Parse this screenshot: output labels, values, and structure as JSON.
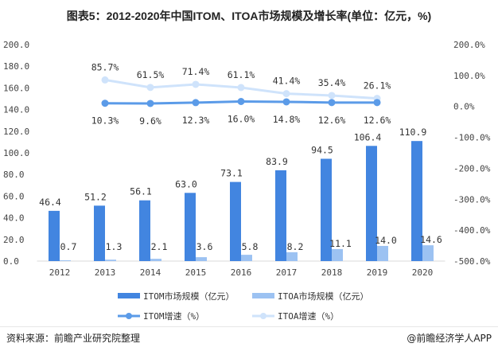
{
  "chart_data": {
    "type": "bar+line",
    "title": "图表5：2012-2020年中国ITOM、ITOA市场规模及增长率(单位：亿元，%)",
    "categories": [
      "2012",
      "2013",
      "2014",
      "2015",
      "2016",
      "2017",
      "2018",
      "2019",
      "2020"
    ],
    "bars": [
      {
        "name": "ITOM市场规模（亿元）",
        "color": "#4285e0",
        "values": [
          46.4,
          51.2,
          56.1,
          63.0,
          73.1,
          83.9,
          94.5,
          106.4,
          110.9
        ]
      },
      {
        "name": "ITOA市场规模（亿元）",
        "color": "#9cc2f2",
        "values": [
          0.7,
          1.3,
          2.1,
          3.6,
          5.8,
          8.2,
          11.1,
          14.0,
          14.6
        ]
      }
    ],
    "lines": [
      {
        "name": "ITOM增速（%）",
        "color": "#5b9be8",
        "x": [
          "2013",
          "2014",
          "2015",
          "2016",
          "2017",
          "2018",
          "2019"
        ],
        "values": [
          10.3,
          9.6,
          12.3,
          16.0,
          14.8,
          12.6,
          12.6
        ],
        "labels": [
          "10.3%",
          "9.6%",
          "12.3%",
          "16.0%",
          "14.8%",
          "12.6%",
          "12.6%"
        ]
      },
      {
        "name": "ITOA增速（%）",
        "color": "#cfe3fb",
        "x": [
          "2013",
          "2014",
          "2015",
          "2016",
          "2017",
          "2018",
          "2019"
        ],
        "values": [
          85.7,
          61.5,
          71.4,
          61.1,
          41.4,
          35.4,
          26.1
        ],
        "labels": [
          "85.7%",
          "61.5%",
          "71.4%",
          "61.1%",
          "41.4%",
          "35.4%",
          "26.1%"
        ]
      }
    ],
    "y_left": {
      "range": [
        0,
        200
      ],
      "ticks": [
        "0.0",
        "20.0",
        "40.0",
        "60.0",
        "80.0",
        "100.0",
        "120.0",
        "140.0",
        "160.0",
        "180.0",
        "200.0"
      ]
    },
    "y_right": {
      "range": [
        -500,
        200
      ],
      "ticks": [
        "-500.0%",
        "-400.0%",
        "-300.0%",
        "-200.0%",
        "-100.0%",
        "0.0%",
        "100.0%",
        "200.0%"
      ]
    },
    "grid": false,
    "legend": "bottom"
  },
  "footer": {
    "source": "资料来源：前瞻产业研究院整理",
    "brand": "@前瞻经济学人APP"
  },
  "watermark": "前瞻产业研究院"
}
